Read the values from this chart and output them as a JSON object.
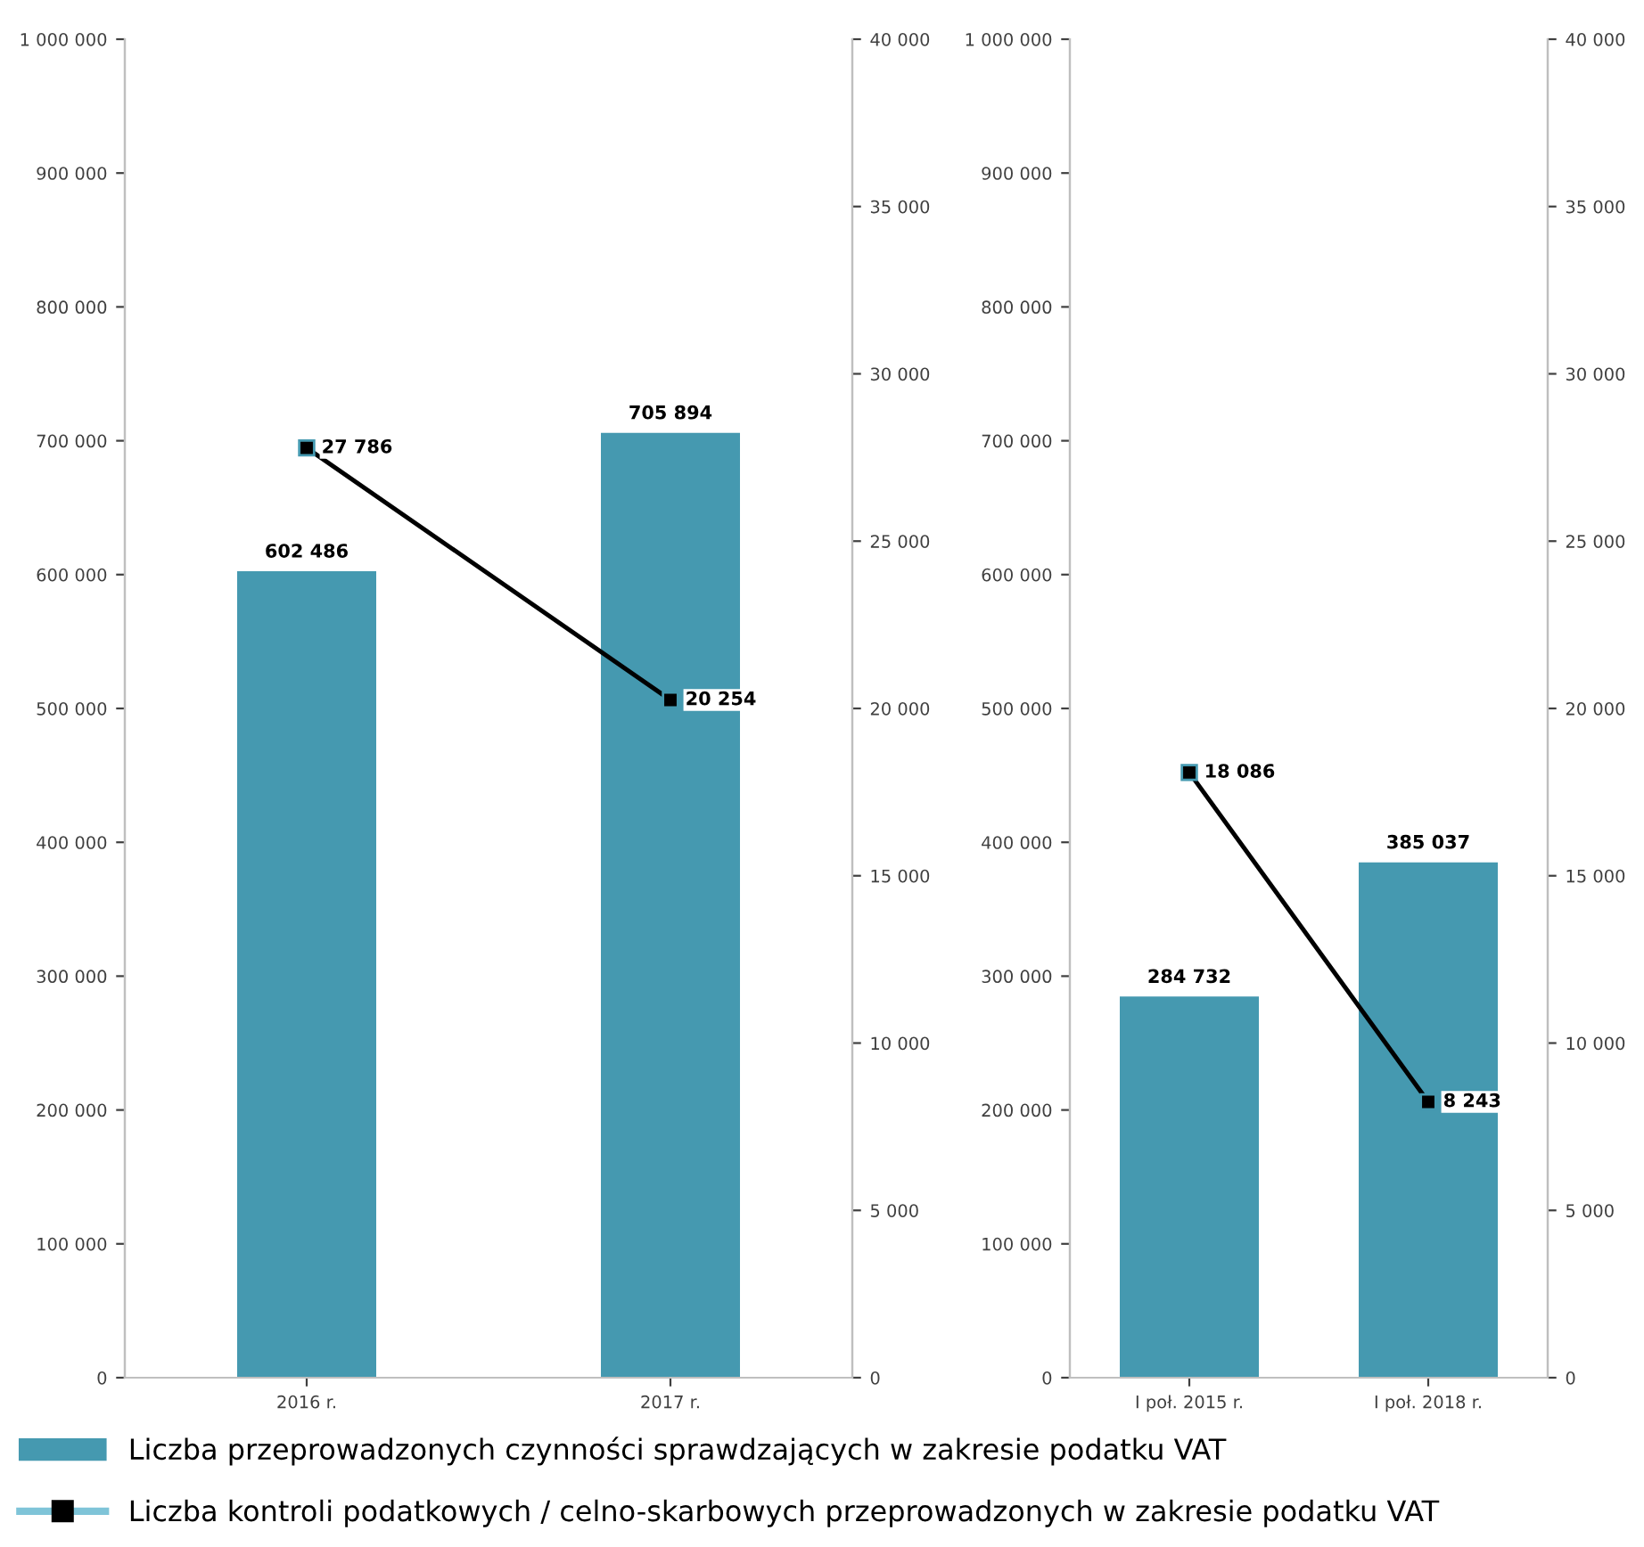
{
  "chart_data": [
    {
      "type": "bar",
      "categories": [
        "2016 r.",
        "2017 r."
      ],
      "legend": "bottom",
      "ylim": [
        0,
        1000000
      ],
      "yticks": [
        {
          "value": 0,
          "label": "0"
        },
        {
          "value": 100000,
          "label": "100 000"
        },
        {
          "value": 200000,
          "label": "200 000"
        },
        {
          "value": 300000,
          "label": "300 000"
        },
        {
          "value": 400000,
          "label": "400 000"
        },
        {
          "value": 500000,
          "label": "500 000"
        },
        {
          "value": 600000,
          "label": "600 000"
        },
        {
          "value": 700000,
          "label": "700 000"
        },
        {
          "value": 800000,
          "label": "800 000"
        },
        {
          "value": 900000,
          "label": "900 000"
        },
        {
          "value": 1000000,
          "label": "1 000 000"
        }
      ],
      "y2lim": [
        0,
        40000
      ],
      "y2ticks": [
        {
          "value": 0,
          "label": "0"
        },
        {
          "value": 5000,
          "label": "5 000"
        },
        {
          "value": 10000,
          "label": "10 000"
        },
        {
          "value": 15000,
          "label": "15 000"
        },
        {
          "value": 20000,
          "label": "20 000"
        },
        {
          "value": 25000,
          "label": "25 000"
        },
        {
          "value": 30000,
          "label": "30 000"
        },
        {
          "value": 35000,
          "label": "35 000"
        },
        {
          "value": 40000,
          "label": "40 000"
        }
      ],
      "series": [
        {
          "name": "Liczba przeprowadzonych czynności sprawdzających w zakresie podatku VAT",
          "color": "#4599b0",
          "values": [
            602486,
            705894
          ],
          "value_labels": [
            "602 486",
            "705 894"
          ]
        },
        {
          "name": "Liczba kontroli podatkowych / celno-skarbowych przeprowadzonych w zakresie podatku VAT",
          "type": "line",
          "axis": "y2",
          "color": "#000000",
          "marker": "square",
          "values": [
            27786,
            20254
          ],
          "value_labels": [
            "27 786",
            "20 254"
          ]
        }
      ]
    },
    {
      "type": "bar",
      "categories": [
        "I poł. 2015 r.",
        "I poł. 2018 r."
      ],
      "ylim": [
        0,
        1000000
      ],
      "yticks": [
        {
          "value": 0,
          "label": "0"
        },
        {
          "value": 100000,
          "label": "100 000"
        },
        {
          "value": 200000,
          "label": "200 000"
        },
        {
          "value": 300000,
          "label": "300 000"
        },
        {
          "value": 400000,
          "label": "400 000"
        },
        {
          "value": 500000,
          "label": "500 000"
        },
        {
          "value": 600000,
          "label": "600 000"
        },
        {
          "value": 700000,
          "label": "700 000"
        },
        {
          "value": 800000,
          "label": "800 000"
        },
        {
          "value": 900000,
          "label": "900 000"
        },
        {
          "value": 1000000,
          "label": "1 000 000"
        }
      ],
      "y2lim": [
        0,
        40000
      ],
      "y2ticks": [
        {
          "value": 0,
          "label": "0"
        },
        {
          "value": 5000,
          "label": "5 000"
        },
        {
          "value": 10000,
          "label": "10 000"
        },
        {
          "value": 15000,
          "label": "15 000"
        },
        {
          "value": 20000,
          "label": "20 000"
        },
        {
          "value": 25000,
          "label": "25 000"
        },
        {
          "value": 30000,
          "label": "30 000"
        },
        {
          "value": 35000,
          "label": "35 000"
        },
        {
          "value": 40000,
          "label": "40 000"
        }
      ],
      "series": [
        {
          "color": "#4599b0",
          "values": [
            284732,
            385037
          ],
          "value_labels": [
            "284 732",
            "385 037"
          ]
        },
        {
          "type": "line",
          "axis": "y2",
          "color": "#000000",
          "marker": "square",
          "values": [
            18086,
            8243
          ],
          "value_labels": [
            "18 086",
            "8 243"
          ]
        }
      ]
    }
  ]
}
